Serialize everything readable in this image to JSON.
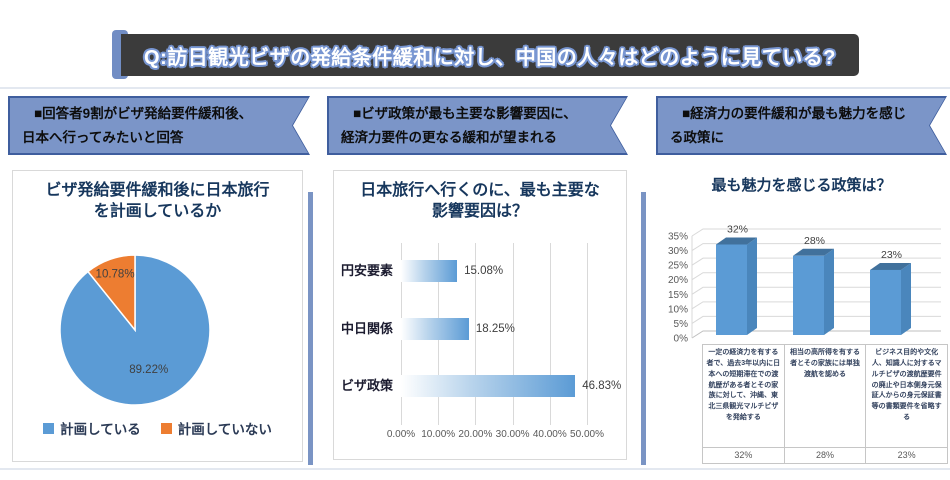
{
  "banner": {
    "title": "Q:訪日観光ビザの発給条件緩和に対し、中国の人々はどのように見ている?"
  },
  "sections": {
    "left": {
      "ribbon_lines": [
        "■回答者9割がビザ発給要件緩和後、",
        "日本へ行ってみたいと回答"
      ]
    },
    "middle": {
      "ribbon_lines": [
        "■ビザ政策が最も主要な影響要因に、",
        "経済力要件の更なる緩和が望まれる"
      ]
    },
    "right": {
      "ribbon_lines": [
        "■経済力の要件緩和が最も魅力を感じ",
        "る政策に"
      ]
    }
  },
  "colors": {
    "accent_blue": "#7b95c8",
    "ribbon_border": "#3f5e9e",
    "banner_dark": "#3b3b3b",
    "title_navy": "#17375d",
    "axis_gray": "#595959",
    "label_gray": "#404040",
    "grid_gray": "#d9d9d9"
  },
  "chart_data": [
    {
      "type": "pie",
      "title": "ビザ発給要件緩和後に日本旅行を計画しているか",
      "labels": [
        "計画している",
        "計画していない"
      ],
      "values": [
        89.22,
        10.78
      ],
      "value_labels": [
        "89.22%",
        "10.78%"
      ],
      "colors": [
        "#5b9bd5",
        "#ed7d31"
      ],
      "legend_position": "bottom"
    },
    {
      "type": "bar",
      "orientation": "horizontal",
      "title": "日本旅行へ行くのに、最も主要な影響要因は？",
      "categories": [
        "円安要素",
        "中日関係",
        "ビザ政策"
      ],
      "values": [
        15.08,
        18.25,
        46.83
      ],
      "value_labels": [
        "15.08%",
        "18.25%",
        "46.83%"
      ],
      "xlim": [
        0,
        50
      ],
      "x_ticks": [
        "0.00%",
        "10.00%",
        "20.00%",
        "30.00%",
        "40.00%",
        "50.00%"
      ],
      "grid": true,
      "bar_color": "#5b9bd5"
    },
    {
      "type": "bar",
      "style": "3d-column",
      "title": "最も魅力を感じる政策は？",
      "categories": [
        "一定の経済力を有する者で、過去3年以内に日本への短期滞在での渡航歴がある者とその家族に対して、沖縄、東北三県観光マルチビザを発給する",
        "相当の高所得を有する者とその家族には単独渡航を認める",
        "ビジネス目的や文化人、知識人に対するマルチビザの渡航歴要件の廃止や日本側身元保証人からの身元保証書等の書類要件を省略する"
      ],
      "values": [
        32,
        28,
        23
      ],
      "value_labels": [
        "32%",
        "28%",
        "23%"
      ],
      "ylim": [
        0,
        35
      ],
      "y_ticks": [
        "0%",
        "5%",
        "10%",
        "15%",
        "20%",
        "25%",
        "30%",
        "35%"
      ],
      "table_values": [
        "32%",
        "28%",
        "23%"
      ],
      "column_colors": {
        "front": "#5b9bd5",
        "top": "#41719c",
        "side": "#4a86bc"
      }
    }
  ]
}
